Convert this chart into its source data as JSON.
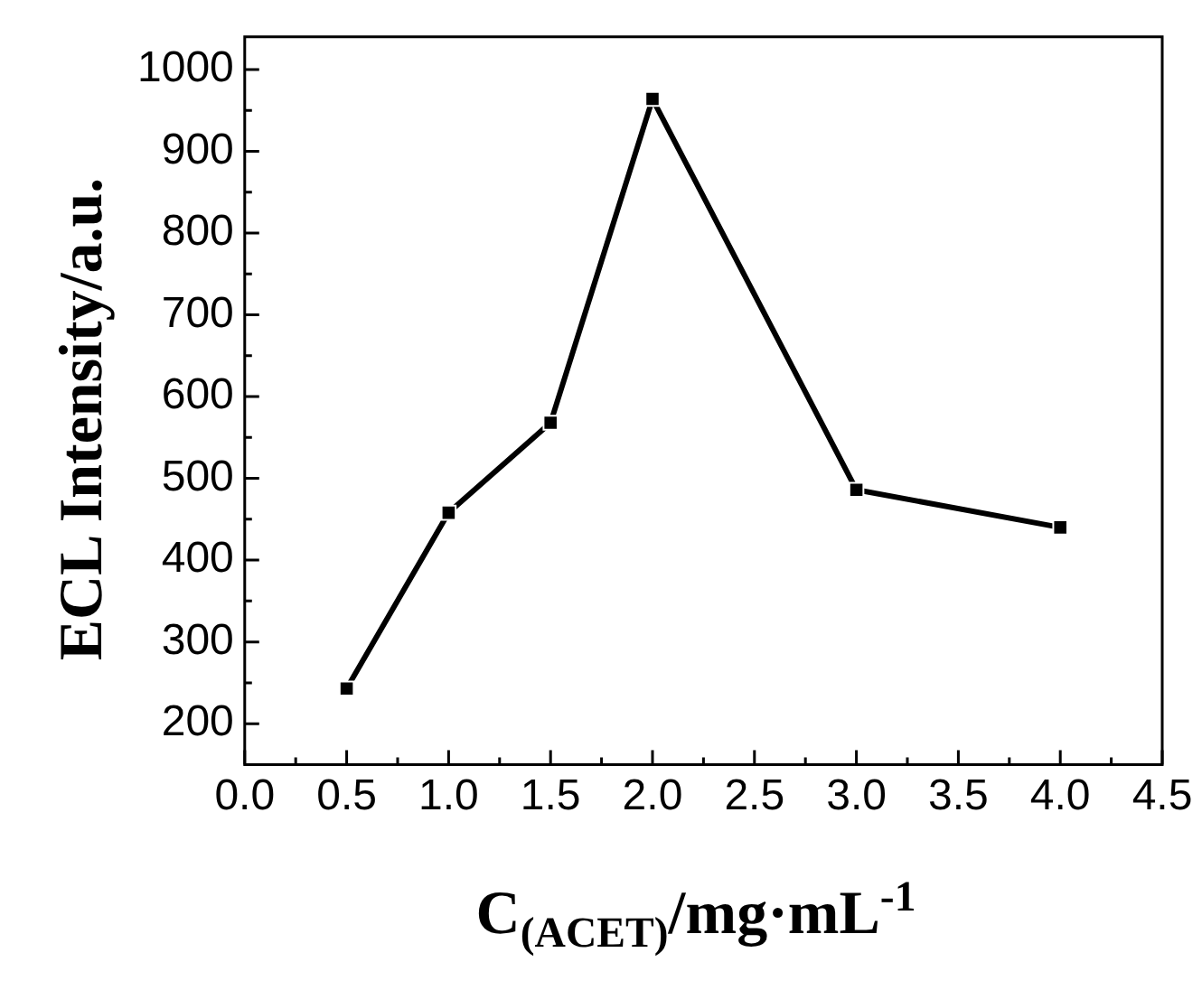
{
  "chart_data": {
    "type": "line",
    "xlabel": "C$_{(ACET)}$/mg·mL$^{-1}$",
    "ylabel": "ECL Intensity/a.u.",
    "x": [
      0.5,
      1.0,
      1.5,
      2.0,
      3.0,
      4.0
    ],
    "series": [
      {
        "color": "#000000",
        "values": [
          243,
          458,
          568,
          964,
          486,
          440
        ]
      }
    ],
    "xlim": [
      0,
      4.5
    ],
    "xticks": [
      {
        "value": 0,
        "label": "0.0"
      },
      0.5,
      {
        "value": 1,
        "label": "1.0"
      },
      1.5,
      {
        "value": 2,
        "label": "2.0"
      },
      2.5,
      {
        "value": 3,
        "label": "3.0"
      },
      3.5,
      {
        "value": 4,
        "label": "4.0"
      },
      4.5
    ],
    "ylim": [
      150,
      1040
    ],
    "yticks": [
      200,
      300,
      400,
      500,
      600,
      700,
      800,
      900,
      1000
    ],
    "grid": false,
    "legend": false,
    "marker": "square",
    "line_style": "solid"
  }
}
